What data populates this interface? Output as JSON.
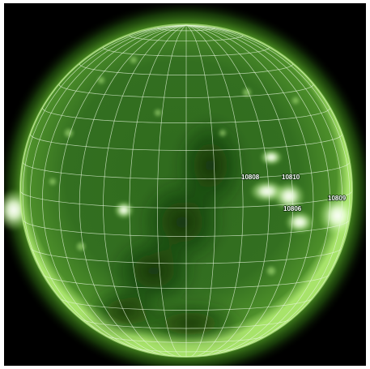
{
  "image": {
    "subject": "solar-disk-extreme-ultraviolet",
    "colors": {
      "background": "#000000",
      "corona": "#7fd23a",
      "disk_base": "#2f6f1f",
      "disk_dark": "#163a10",
      "grid": "#e6f5dc",
      "active_region": "#f4ffe8"
    },
    "labels": [
      {
        "id": "region-label-1",
        "text": "10808"
      },
      {
        "id": "region-label-2",
        "text": "10810"
      },
      {
        "id": "region-label-3",
        "text": "10809"
      },
      {
        "id": "region-label-4",
        "text": "10806"
      }
    ]
  }
}
